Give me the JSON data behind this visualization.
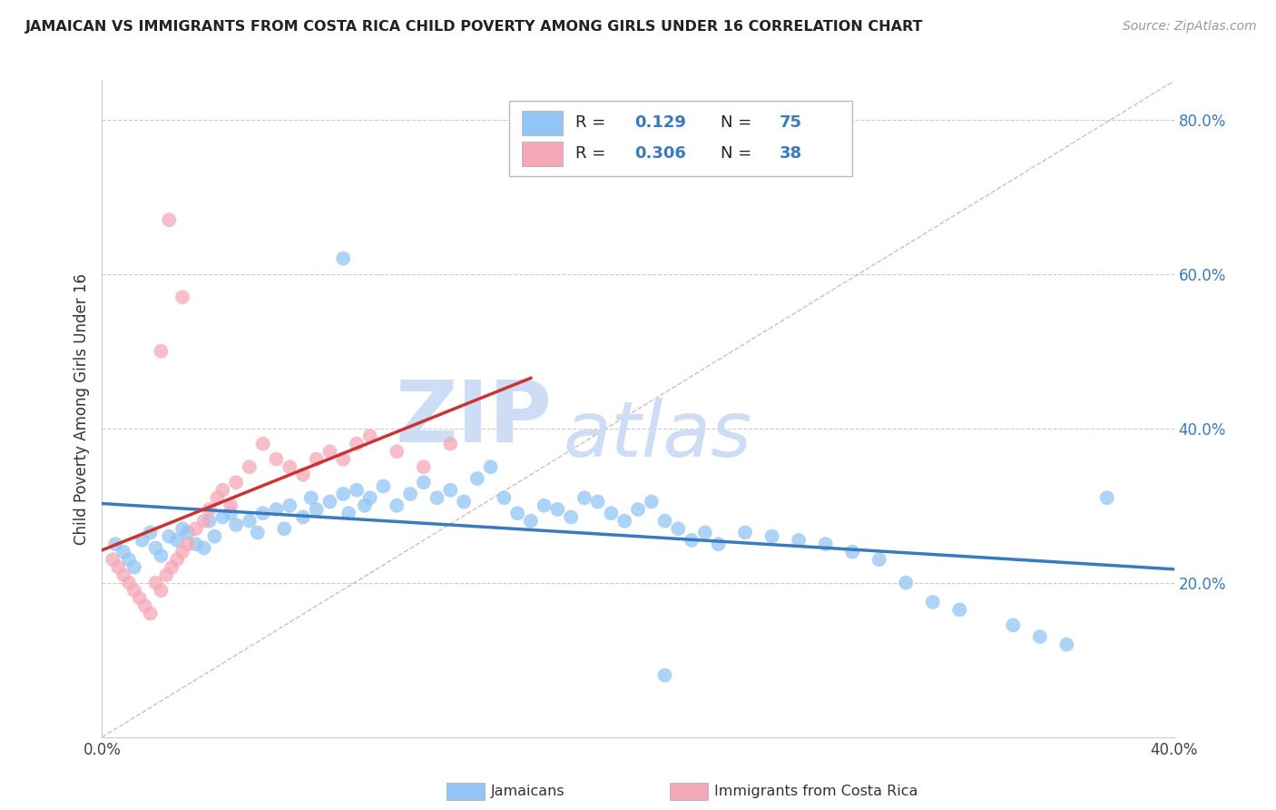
{
  "title": "JAMAICAN VS IMMIGRANTS FROM COSTA RICA CHILD POVERTY AMONG GIRLS UNDER 16 CORRELATION CHART",
  "source": "Source: ZipAtlas.com",
  "ylabel": "Child Poverty Among Girls Under 16",
  "xlim": [
    0.0,
    0.4
  ],
  "ylim": [
    0.0,
    0.85
  ],
  "grid_color": "#cccccc",
  "background_color": "#ffffff",
  "blue_color": "#92c5f5",
  "pink_color": "#f5a8b8",
  "blue_line_color": "#3a7abf",
  "pink_line_color": "#cc3333",
  "diag_color": "#ccaaaa",
  "watermark_zip_color": "#ccddf5",
  "watermark_atlas_color": "#ccddf5",
  "legend_label1": "Jamaicans",
  "legend_label2": "Immigrants from Costa Rica",
  "jamaicans_x": [
    0.005,
    0.008,
    0.01,
    0.012,
    0.015,
    0.018,
    0.02,
    0.022,
    0.025,
    0.028,
    0.03,
    0.032,
    0.035,
    0.038,
    0.04,
    0.042,
    0.045,
    0.048,
    0.05,
    0.055,
    0.058,
    0.06,
    0.065,
    0.068,
    0.07,
    0.075,
    0.078,
    0.08,
    0.085,
    0.09,
    0.092,
    0.095,
    0.098,
    0.1,
    0.105,
    0.11,
    0.115,
    0.12,
    0.125,
    0.13,
    0.135,
    0.14,
    0.145,
    0.15,
    0.155,
    0.16,
    0.165,
    0.17,
    0.175,
    0.18,
    0.185,
    0.19,
    0.195,
    0.2,
    0.205,
    0.21,
    0.215,
    0.22,
    0.225,
    0.23,
    0.24,
    0.25,
    0.26,
    0.27,
    0.28,
    0.29,
    0.3,
    0.31,
    0.32,
    0.34,
    0.35,
    0.36,
    0.375,
    0.09,
    0.21
  ],
  "jamaicans_y": [
    0.25,
    0.24,
    0.23,
    0.22,
    0.255,
    0.265,
    0.245,
    0.235,
    0.26,
    0.255,
    0.27,
    0.265,
    0.25,
    0.245,
    0.28,
    0.26,
    0.285,
    0.29,
    0.275,
    0.28,
    0.265,
    0.29,
    0.295,
    0.27,
    0.3,
    0.285,
    0.31,
    0.295,
    0.305,
    0.315,
    0.29,
    0.32,
    0.3,
    0.31,
    0.325,
    0.3,
    0.315,
    0.33,
    0.31,
    0.32,
    0.305,
    0.335,
    0.35,
    0.31,
    0.29,
    0.28,
    0.3,
    0.295,
    0.285,
    0.31,
    0.305,
    0.29,
    0.28,
    0.295,
    0.305,
    0.28,
    0.27,
    0.255,
    0.265,
    0.25,
    0.265,
    0.26,
    0.255,
    0.25,
    0.24,
    0.23,
    0.2,
    0.175,
    0.165,
    0.145,
    0.13,
    0.12,
    0.31,
    0.62,
    0.08
  ],
  "costarica_x": [
    0.004,
    0.006,
    0.008,
    0.01,
    0.012,
    0.014,
    0.016,
    0.018,
    0.02,
    0.022,
    0.024,
    0.026,
    0.028,
    0.03,
    0.032,
    0.035,
    0.038,
    0.04,
    0.043,
    0.045,
    0.048,
    0.05,
    0.055,
    0.06,
    0.065,
    0.07,
    0.075,
    0.08,
    0.085,
    0.09,
    0.095,
    0.1,
    0.11,
    0.12,
    0.13,
    0.025,
    0.03,
    0.022
  ],
  "costarica_y": [
    0.23,
    0.22,
    0.21,
    0.2,
    0.19,
    0.18,
    0.17,
    0.16,
    0.2,
    0.19,
    0.21,
    0.22,
    0.23,
    0.24,
    0.25,
    0.27,
    0.28,
    0.295,
    0.31,
    0.32,
    0.3,
    0.33,
    0.35,
    0.38,
    0.36,
    0.35,
    0.34,
    0.36,
    0.37,
    0.36,
    0.38,
    0.39,
    0.37,
    0.35,
    0.38,
    0.67,
    0.57,
    0.5
  ]
}
